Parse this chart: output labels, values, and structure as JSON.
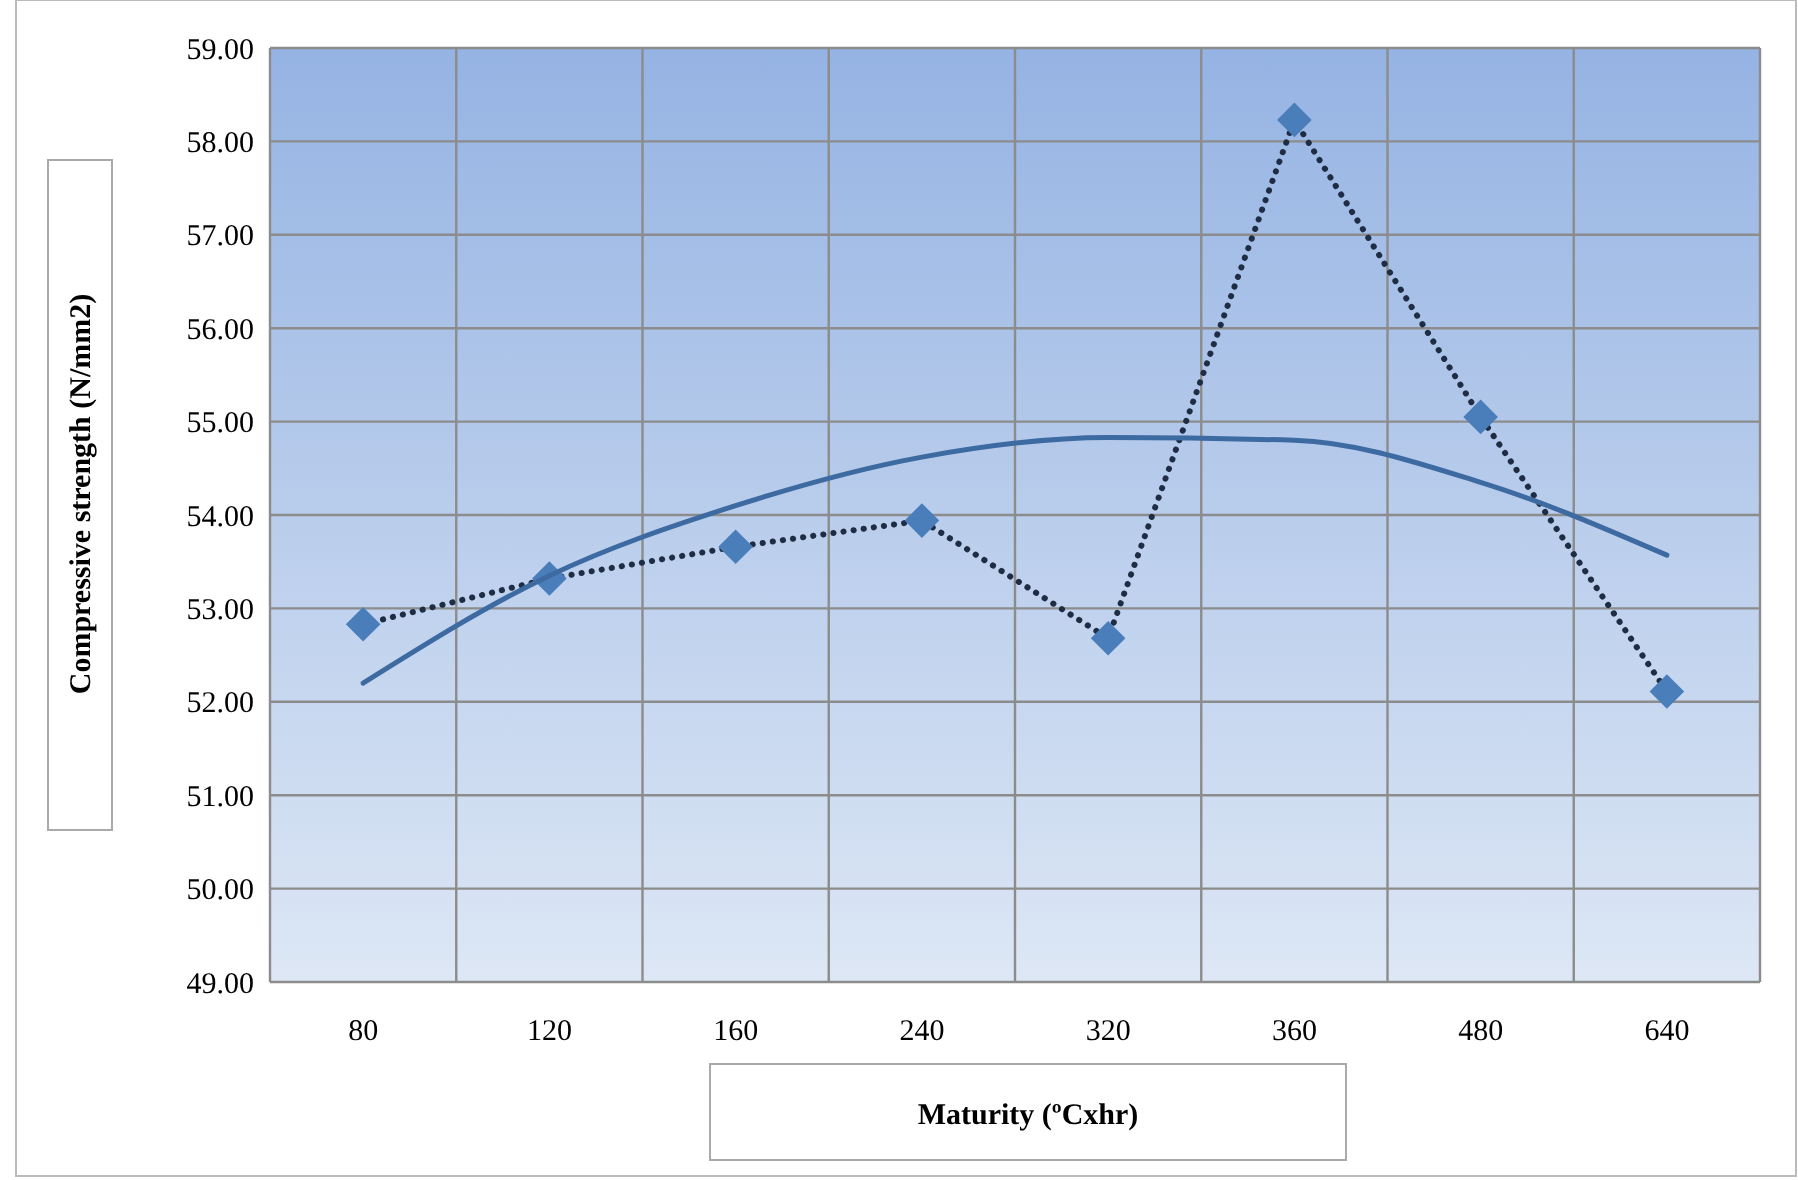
{
  "chart_data": {
    "type": "line",
    "xlabel": "Maturity (ºCxhr)",
    "ylabel": "Compressive strength (N/mm2)",
    "categories": [
      "80",
      "120",
      "160",
      "240",
      "320",
      "360",
      "480",
      "640"
    ],
    "series": [
      {
        "color": "#4a7ebb",
        "values": [
          52.83,
          53.32,
          53.66,
          53.94,
          52.68,
          58.23,
          55.05,
          52.11
        ],
        "marker": "diamond",
        "line_style": "dotted"
      },
      {
        "type": "line",
        "color": "#3d6aa0",
        "values": [
          52.2,
          53.35,
          54.1,
          54.62,
          54.83,
          54.8,
          54.35,
          53.57
        ],
        "marker": "none",
        "line_style": "solid"
      }
    ],
    "ylim": [
      49,
      59
    ],
    "yticks": [
      {
        "value": 49,
        "label": "49.00"
      },
      {
        "value": 50,
        "label": "50.00"
      },
      {
        "value": 51,
        "label": "51.00"
      },
      {
        "value": 52,
        "label": "52.00"
      },
      {
        "value": 53,
        "label": "53.00"
      },
      {
        "value": 54,
        "label": "54.00"
      },
      {
        "value": 55,
        "label": "55.00"
      },
      {
        "value": 56,
        "label": "56.00"
      },
      {
        "value": 57,
        "label": "57.00"
      },
      {
        "value": 58,
        "label": "58.00"
      },
      {
        "value": 59,
        "label": "59.00"
      }
    ],
    "grid": true
  }
}
